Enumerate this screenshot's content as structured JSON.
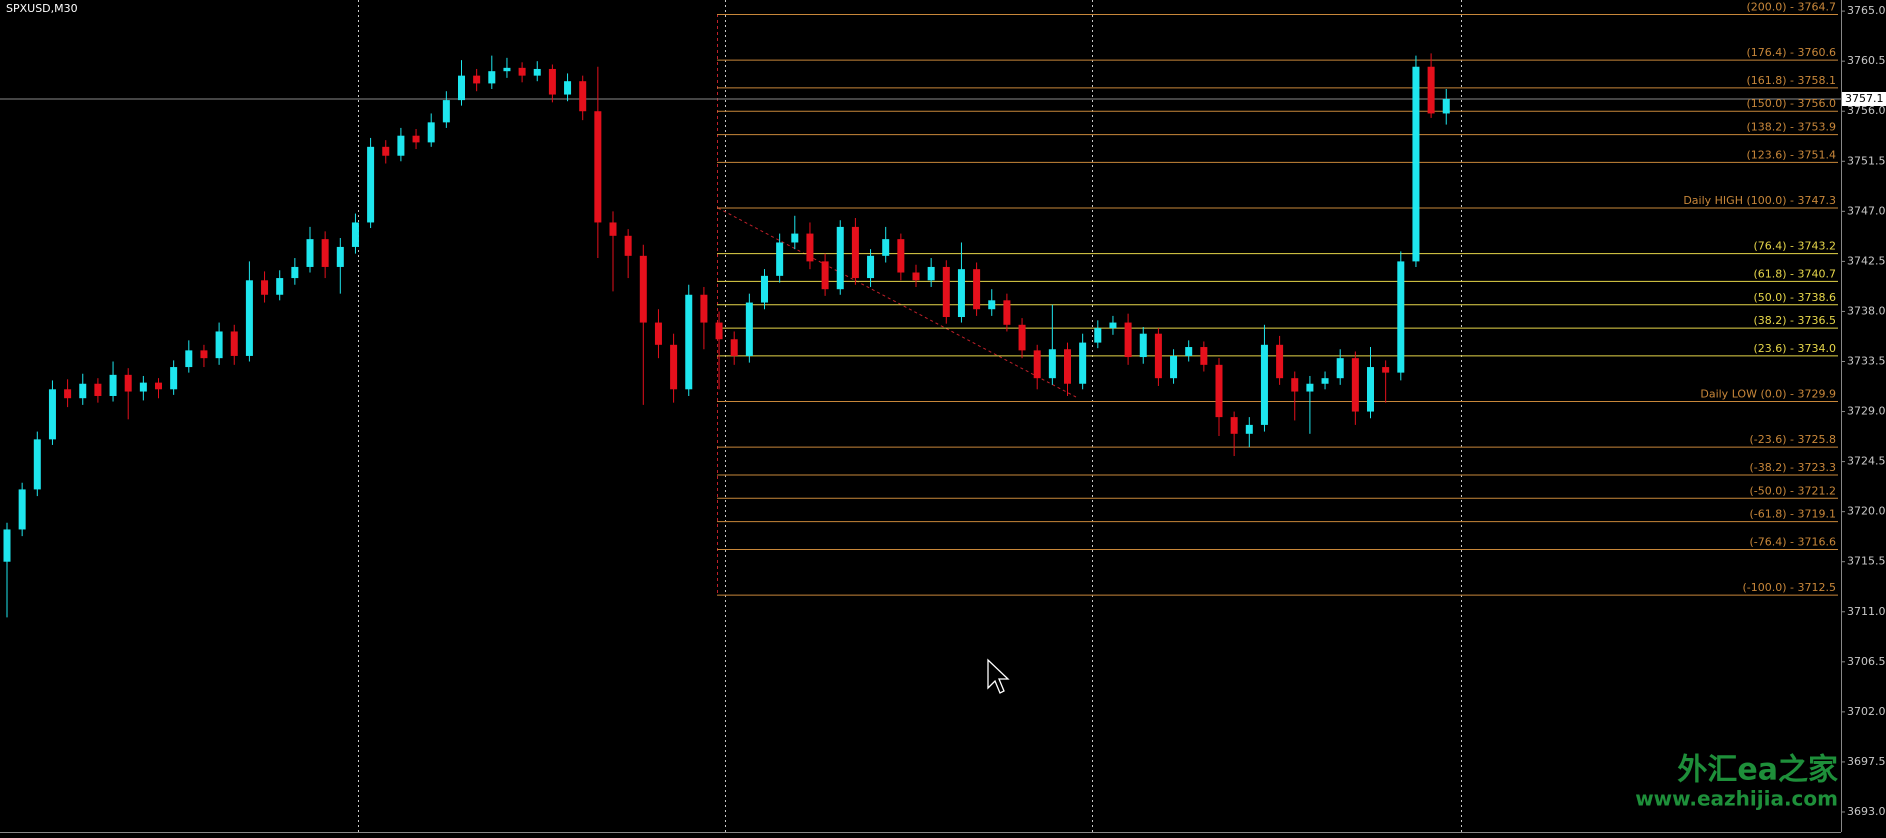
{
  "chart_data": {
    "type": "candlestick",
    "title": "SPXUSD,M30",
    "bull_color": "#1ee6ee",
    "bear_color": "#e5101c",
    "ylim": [
      3691.2,
      3766.0
    ],
    "yticks": [
      {
        "value": 3765,
        "label": "3765.0"
      },
      {
        "value": 3760.5,
        "label": "3760.5"
      },
      {
        "value": 3756,
        "label": "3756.0"
      },
      {
        "value": 3751.5,
        "label": "3751.5"
      },
      {
        "value": 3747,
        "label": "3747.0"
      },
      {
        "value": 3742.5,
        "label": "3742.5"
      },
      {
        "value": 3738,
        "label": "3738.0"
      },
      {
        "value": 3733.5,
        "label": "3733.5"
      },
      {
        "value": 3729,
        "label": "3729.0"
      },
      {
        "value": 3724.5,
        "label": "3724.5"
      },
      {
        "value": 3720,
        "label": "3720.0"
      },
      {
        "value": 3715.5,
        "label": "3715.5"
      },
      {
        "value": 3711,
        "label": "3711.0"
      },
      {
        "value": 3706.5,
        "label": "3706.5"
      },
      {
        "value": 3702,
        "label": "3702.0"
      },
      {
        "value": 3697.5,
        "label": "3697.5"
      },
      {
        "value": 3693,
        "label": "3693.0"
      }
    ],
    "current_price": 3757.1,
    "fib_levels": [
      {
        "label": "(200.0) - 3764.7",
        "value": 3764.7,
        "color": "#c8873a"
      },
      {
        "label": "(176.4) - 3760.6",
        "value": 3760.6,
        "color": "#c8873a"
      },
      {
        "label": "(161.8) - 3758.1",
        "value": 3758.1,
        "color": "#c8873a"
      },
      {
        "label": "(150.0) - 3756.0",
        "value": 3756.0,
        "color": "#c8873a"
      },
      {
        "label": "(138.2) - 3753.9",
        "value": 3753.9,
        "color": "#c8873a"
      },
      {
        "label": "(123.6) - 3751.4",
        "value": 3751.4,
        "color": "#c8873a"
      },
      {
        "label": "Daily HIGH (100.0) - 3747.3",
        "value": 3747.3,
        "color": "#c8873a"
      },
      {
        "label": "(76.4) - 3743.2",
        "value": 3743.2,
        "color": "#e6d64a"
      },
      {
        "label": "(61.8) - 3740.7",
        "value": 3740.7,
        "color": "#e6d64a"
      },
      {
        "label": "(50.0) - 3738.6",
        "value": 3738.6,
        "color": "#e6d64a"
      },
      {
        "label": "(38.2) - 3736.5",
        "value": 3736.5,
        "color": "#e6d64a"
      },
      {
        "label": "(23.6) - 3734.0",
        "value": 3734.0,
        "color": "#e6d64a"
      },
      {
        "label": "Daily LOW (0.0) - 3729.9",
        "value": 3729.9,
        "color": "#c8873a"
      },
      {
        "label": "(-23.6) - 3725.8",
        "value": 3725.8,
        "color": "#c8873a"
      },
      {
        "label": "(-38.2) - 3723.3",
        "value": 3723.3,
        "color": "#c8873a"
      },
      {
        "label": "(-50.0) - 3721.2",
        "value": 3721.2,
        "color": "#c8873a"
      },
      {
        "label": "(-61.8) - 3719.1",
        "value": 3719.1,
        "color": "#c8873a"
      },
      {
        "label": "(-76.4) - 3716.6",
        "value": 3716.6,
        "color": "#c8873a"
      },
      {
        "label": "(-100.0) - 3712.5",
        "value": 3712.5,
        "color": "#c8873a"
      }
    ],
    "candles": [
      [
        3715.5,
        3719.0,
        3710.5,
        3718.4
      ],
      [
        3718.4,
        3722.6,
        3717.8,
        3722.0
      ],
      [
        3722.0,
        3727.2,
        3721.4,
        3726.5
      ],
      [
        3726.5,
        3731.8,
        3726.0,
        3731.0
      ],
      [
        3731.0,
        3731.9,
        3729.4,
        3730.2
      ],
      [
        3730.2,
        3732.4,
        3729.6,
        3731.5
      ],
      [
        3731.5,
        3732.0,
        3729.8,
        3730.4
      ],
      [
        3730.4,
        3733.5,
        3729.9,
        3732.3
      ],
      [
        3732.3,
        3732.9,
        3728.3,
        3730.8
      ],
      [
        3730.8,
        3732.2,
        3730.0,
        3731.6
      ],
      [
        3731.6,
        3732.0,
        3730.2,
        3731.0
      ],
      [
        3731.0,
        3733.6,
        3730.5,
        3733.0
      ],
      [
        3733.0,
        3735.4,
        3732.5,
        3734.5
      ],
      [
        3734.5,
        3735.0,
        3733.0,
        3733.8
      ],
      [
        3733.8,
        3737.0,
        3733.2,
        3736.2
      ],
      [
        3736.2,
        3736.8,
        3733.2,
        3734.0
      ],
      [
        3734.0,
        3742.5,
        3733.5,
        3740.8
      ],
      [
        3740.8,
        3741.6,
        3738.8,
        3739.5
      ],
      [
        3739.5,
        3741.7,
        3739.0,
        3741.0
      ],
      [
        3741.0,
        3742.8,
        3740.4,
        3742.0
      ],
      [
        3742.0,
        3745.6,
        3741.5,
        3744.5
      ],
      [
        3744.5,
        3745.2,
        3741.0,
        3742.0
      ],
      [
        3742.0,
        3744.6,
        3739.6,
        3743.8
      ],
      [
        3743.8,
        3746.8,
        3743.2,
        3746.0
      ],
      [
        3746.0,
        3753.6,
        3745.5,
        3752.8
      ],
      [
        3752.8,
        3753.4,
        3751.3,
        3752.0
      ],
      [
        3752.0,
        3754.5,
        3751.5,
        3753.8
      ],
      [
        3753.8,
        3754.4,
        3752.6,
        3753.2
      ],
      [
        3753.2,
        3755.8,
        3752.8,
        3755.0
      ],
      [
        3755.0,
        3757.8,
        3754.5,
        3757.0
      ],
      [
        3757.0,
        3760.6,
        3756.5,
        3759.2
      ],
      [
        3759.2,
        3759.8,
        3757.8,
        3758.5
      ],
      [
        3758.5,
        3761.0,
        3758.0,
        3759.6
      ],
      [
        3759.6,
        3760.8,
        3759.0,
        3759.9
      ],
      [
        3759.9,
        3760.4,
        3758.6,
        3759.2
      ],
      [
        3759.2,
        3760.5,
        3758.7,
        3759.8
      ],
      [
        3759.8,
        3760.2,
        3756.8,
        3757.5
      ],
      [
        3757.5,
        3759.4,
        3756.9,
        3758.7
      ],
      [
        3758.7,
        3759.2,
        3755.2,
        3756.0
      ],
      [
        3756.0,
        3760.0,
        3742.8,
        3746.0
      ],
      [
        3746.0,
        3747.0,
        3739.8,
        3744.8
      ],
      [
        3744.8,
        3745.4,
        3741.0,
        3743.0
      ],
      [
        3743.0,
        3744.0,
        3729.6,
        3737.0
      ],
      [
        3737.0,
        3738.2,
        3733.8,
        3735.0
      ],
      [
        3735.0,
        3736.0,
        3729.8,
        3731.0
      ],
      [
        3731.0,
        3740.4,
        3730.4,
        3739.5
      ],
      [
        3739.5,
        3740.2,
        3734.6,
        3737.0
      ],
      [
        3737.0,
        3738.0,
        3731.0,
        3735.5
      ],
      [
        3735.5,
        3736.2,
        3733.2,
        3734.0
      ],
      [
        3734.0,
        3739.6,
        3733.4,
        3738.8
      ],
      [
        3738.8,
        3741.8,
        3738.2,
        3741.2
      ],
      [
        3741.2,
        3745.0,
        3740.6,
        3744.2
      ],
      [
        3744.2,
        3746.6,
        3743.6,
        3745.0
      ],
      [
        3745.0,
        3746.0,
        3741.8,
        3742.5
      ],
      [
        3742.5,
        3743.2,
        3739.4,
        3740.0
      ],
      [
        3740.0,
        3746.2,
        3739.5,
        3745.6
      ],
      [
        3745.6,
        3746.4,
        3740.4,
        3741.0
      ],
      [
        3741.0,
        3743.6,
        3740.2,
        3743.0
      ],
      [
        3743.0,
        3745.6,
        3742.4,
        3744.5
      ],
      [
        3744.5,
        3745.0,
        3740.8,
        3741.5
      ],
      [
        3741.5,
        3742.2,
        3740.2,
        3740.8
      ],
      [
        3740.8,
        3742.8,
        3740.2,
        3742.0
      ],
      [
        3742.0,
        3742.6,
        3736.9,
        3737.5
      ],
      [
        3737.5,
        3744.2,
        3737.0,
        3741.8
      ],
      [
        3741.8,
        3742.4,
        3737.6,
        3738.2
      ],
      [
        3738.2,
        3740.0,
        3737.6,
        3739.0
      ],
      [
        3739.0,
        3739.6,
        3736.2,
        3736.8
      ],
      [
        3736.8,
        3737.4,
        3733.8,
        3734.5
      ],
      [
        3734.5,
        3735.0,
        3731.0,
        3732.0
      ],
      [
        3732.0,
        3738.6,
        3731.4,
        3734.6
      ],
      [
        3734.6,
        3735.2,
        3730.4,
        3731.5
      ],
      [
        3731.5,
        3736.0,
        3731.0,
        3735.2
      ],
      [
        3735.2,
        3737.2,
        3734.7,
        3736.5
      ],
      [
        3736.5,
        3737.6,
        3735.9,
        3737.0
      ],
      [
        3737.0,
        3737.8,
        3733.2,
        3733.9
      ],
      [
        3733.9,
        3736.6,
        3733.3,
        3736.0
      ],
      [
        3736.0,
        3736.5,
        3731.3,
        3732.0
      ],
      [
        3732.0,
        3734.6,
        3731.5,
        3734.0
      ],
      [
        3734.0,
        3735.4,
        3733.5,
        3734.8
      ],
      [
        3734.8,
        3735.3,
        3732.6,
        3733.2
      ],
      [
        3733.2,
        3733.8,
        3726.8,
        3728.5
      ],
      [
        3728.5,
        3729.0,
        3725.0,
        3727.0
      ],
      [
        3727.0,
        3728.5,
        3725.8,
        3727.8
      ],
      [
        3727.8,
        3736.8,
        3727.2,
        3735.0
      ],
      [
        3735.0,
        3735.8,
        3731.4,
        3732.0
      ],
      [
        3732.0,
        3732.6,
        3728.2,
        3730.8
      ],
      [
        3730.8,
        3732.2,
        3727.0,
        3731.5
      ],
      [
        3731.5,
        3732.6,
        3731.0,
        3732.0
      ],
      [
        3732.0,
        3734.6,
        3731.4,
        3733.8
      ],
      [
        3733.8,
        3734.4,
        3727.8,
        3729.0
      ],
      [
        3729.0,
        3734.8,
        3728.4,
        3733.0
      ],
      [
        3733.0,
        3733.6,
        3729.8,
        3732.5
      ],
      [
        3732.5,
        3743.4,
        3731.8,
        3742.5
      ],
      [
        3742.5,
        3761.0,
        3742.0,
        3760.0
      ],
      [
        3760.0,
        3761.2,
        3755.4,
        3755.8
      ],
      [
        3755.8,
        3758.0,
        3754.8,
        3757.1
      ]
    ],
    "watermark": {
      "title": "外汇ea之家",
      "url": "www.eazhijia.com"
    }
  }
}
